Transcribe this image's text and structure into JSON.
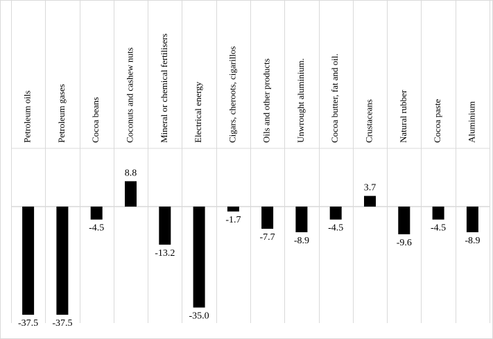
{
  "chart_data": {
    "type": "bar",
    "title": "",
    "xlabel": "",
    "ylabel": "",
    "categories": [
      "Petroleum oils",
      "Petroleum gases",
      "Cocoa beans",
      "Coconuts and cashew nuts",
      "Mineral or chemical fertilisers",
      "Electrical energy",
      "Cigars, cheroots, cigarillos",
      "Oils and other products",
      "Unwrought aluminium.",
      "Cocoa butter, fat and oil.",
      "Crustaceans",
      "Natural rubber",
      "Cocoa paste",
      "Aluminium"
    ],
    "values": [
      -37.5,
      -37.5,
      -4.5,
      8.8,
      -13.2,
      -35.0,
      -1.7,
      -7.7,
      -8.9,
      -4.5,
      3.7,
      -9.6,
      -4.5,
      -8.9
    ],
    "data_labels": [
      "-37.5",
      "-37.5",
      "-4.5",
      "8.8",
      "-13.2",
      "-35.0",
      "-1.7",
      "-7.7",
      "-8.9",
      "-4.5",
      "3.7",
      "-9.6",
      "-4.5",
      "-8.9"
    ],
    "ylim": [
      -40,
      10
    ],
    "grid": "vertical separators",
    "legend": "none",
    "bar_color": "#000000",
    "line_color": "#d9d9d9"
  }
}
